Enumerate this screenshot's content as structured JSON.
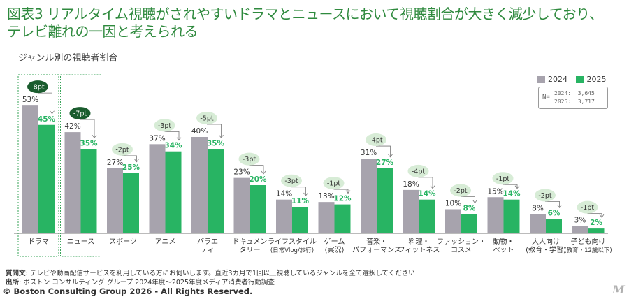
{
  "title": "図表3 リアルタイム視聴がされやすいドラマとニュースにおいて視聴割合が大きく減少しており、\nテレビ離れの一因と考えられる",
  "chart_data": {
    "type": "bar",
    "title": "ジャンル別の視聴者割合",
    "ylim": [
      0,
      60
    ],
    "categories": [
      [
        "ドラマ"
      ],
      [
        "ニュース"
      ],
      [
        "スポーツ"
      ],
      [
        "アニメ"
      ],
      [
        "バラエ",
        "ティ"
      ],
      [
        "ドキュメン",
        "タリー"
      ],
      [
        "ライフスタイル",
        "(日常Vlog/旅行)"
      ],
      [
        "ゲーム",
        "(実況)"
      ],
      [
        "音楽・",
        "パフォーマンス"
      ],
      [
        "料理・",
        "フィットネス"
      ],
      [
        "ファッション・",
        "コスメ"
      ],
      [
        "動物・",
        "ペット"
      ],
      [
        "大人向け",
        "(教育・学習)"
      ],
      [
        "子ども向け",
        "(教育・12歳以下)"
      ]
    ],
    "series": [
      {
        "name": "2024",
        "color": "#a7a3ad",
        "values": [
          53,
          42,
          27,
          37,
          40,
          23,
          14,
          13,
          31,
          18,
          10,
          15,
          8,
          3
        ]
      },
      {
        "name": "2025",
        "color": "#28b463",
        "values": [
          45,
          35,
          25,
          34,
          35,
          20,
          11,
          12,
          27,
          14,
          8,
          14,
          6,
          2
        ]
      }
    ],
    "diff_labels": [
      "-8pt",
      "-7pt",
      "-2pt",
      "-3pt",
      "-5pt",
      "-3pt",
      "-3pt",
      "-1pt",
      "-4pt",
      "-4pt",
      "-2pt",
      "-1pt",
      "-2pt",
      "-1pt"
    ],
    "highlighted": [
      0,
      1
    ],
    "colors": {
      "bar_2024": "#a7a3ad",
      "bar_2025": "#28b463",
      "label_2025": "#28b463",
      "bubble_light": "#d7ecd6",
      "bubble_dark": "#1a5c2e",
      "title": "#2f8a3e"
    }
  },
  "n_box": {
    "label": "N=",
    "row1": "2024:  3,645",
    "row2": "2025:  3,717"
  },
  "footer": {
    "q_label": "質問文",
    "q_text": ": テレビや動画配信サービスを利用している方にお伺いします。直近3カ月で1回以上視聴しているジャンルを全て選択してください",
    "s_label": "出所",
    "s_text": ": ボストン コンサルティング グループ 2024年度～2025年度メディア消費者行動調査"
  },
  "copyright": "© Boston Consulting Group 2026 - All Rights Reserved.",
  "logo": "M"
}
